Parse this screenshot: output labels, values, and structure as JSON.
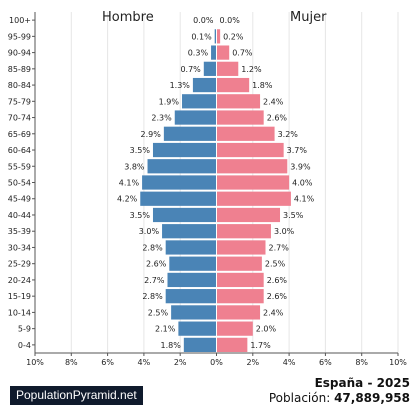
{
  "chart_data": {
    "type": "bar",
    "left_series_label": "Hombre",
    "right_series_label": "Mujer",
    "categories": [
      "100+",
      "95-99",
      "90-94",
      "85-89",
      "80-84",
      "75-79",
      "70-74",
      "65-69",
      "60-64",
      "55-59",
      "50-54",
      "45-49",
      "40-44",
      "35-39",
      "30-34",
      "25-29",
      "20-24",
      "15-19",
      "10-14",
      "5-9",
      "0-4"
    ],
    "series": [
      {
        "name": "Hombre",
        "color": "#4a84b6",
        "values": [
          0.0,
          0.1,
          0.3,
          0.7,
          1.3,
          1.9,
          2.3,
          2.9,
          3.5,
          3.8,
          4.1,
          4.2,
          3.5,
          3.0,
          2.8,
          2.6,
          2.7,
          2.8,
          2.5,
          2.1,
          1.8
        ],
        "labels": [
          "0.0%",
          "0.1%",
          "0.3%",
          "0.7%",
          "1.3%",
          "1.9%",
          "2.3%",
          "2.9%",
          "3.5%",
          "3.8%",
          "4.1%",
          "4.2%",
          "3.5%",
          "3.0%",
          "2.8%",
          "2.6%",
          "2.7%",
          "2.8%",
          "2.5%",
          "2.1%",
          "1.8%"
        ]
      },
      {
        "name": "Mujer",
        "color": "#ef8090",
        "values": [
          0.0,
          0.2,
          0.7,
          1.2,
          1.8,
          2.4,
          2.6,
          3.2,
          3.7,
          3.9,
          4.0,
          4.1,
          3.5,
          3.0,
          2.7,
          2.5,
          2.6,
          2.6,
          2.4,
          2.0,
          1.7
        ],
        "labels": [
          "0.0%",
          "0.2%",
          "0.7%",
          "1.2%",
          "1.8%",
          "2.4%",
          "2.6%",
          "3.2%",
          "3.7%",
          "3.9%",
          "4.0%",
          "4.1%",
          "3.5%",
          "3.0%",
          "2.7%",
          "2.5%",
          "2.6%",
          "2.6%",
          "2.4%",
          "2.0%",
          "1.7%"
        ]
      }
    ],
    "x_ticks": [
      "10%",
      "8%",
      "6%",
      "4%",
      "2%",
      "0%",
      "2%",
      "4%",
      "6%",
      "8%",
      "10%"
    ],
    "xlim": [
      -10,
      10
    ],
    "grid": true
  },
  "footer": {
    "brand": "PopulationPyramid.net",
    "country_year": "España - 2025",
    "population_label": "Población:",
    "population_value": "47,889,958"
  }
}
